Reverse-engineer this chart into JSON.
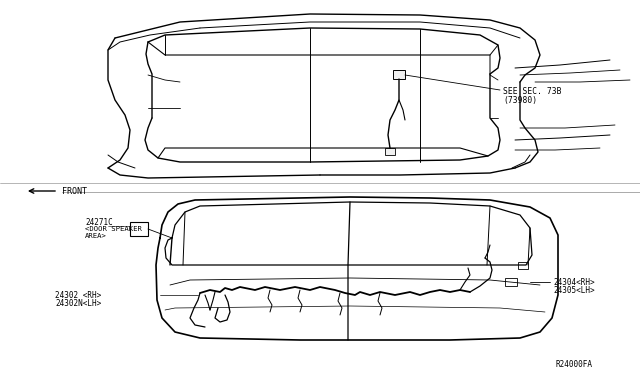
{
  "bg_color": "#ffffff",
  "line_color": "#000000",
  "fig_width": 6.4,
  "fig_height": 3.72,
  "dpi": 100,
  "labels": {
    "see_sec_1": "SEE SEC. 73B",
    "see_sec_2": "(73980)",
    "front": "FRONT",
    "part1": "24271C",
    "part1b": "<DOOR SPEAKER",
    "part1c": "AREA>",
    "part2a": "24302 <RH>",
    "part2b": "24302N<LH>",
    "part3a": "24304<RH>",
    "part3b": "24305<LH>",
    "watermark": "R24000FA"
  }
}
